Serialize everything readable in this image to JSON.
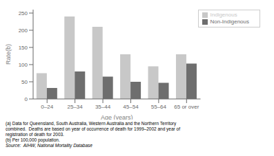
{
  "chart_data": {
    "type": "bar",
    "categories": [
      "0–24",
      "25–34",
      "35–44",
      "45–54",
      "55–64",
      "65 or over"
    ],
    "series": [
      {
        "name": "Indigenous",
        "color": "#c8c8c8",
        "values": [
          75,
          240,
          210,
          130,
          95,
          130
        ]
      },
      {
        "name": "Non-Indigenous",
        "color": "#6e6e6e",
        "values": [
          32,
          80,
          65,
          50,
          47,
          103
        ]
      }
    ],
    "xlabel": "Age (years)",
    "ylabel": "Rate(b)",
    "ylim": [
      0,
      260
    ],
    "yticks": [
      0,
      50,
      100,
      150,
      200,
      250
    ],
    "grid": false,
    "legend": "upper right",
    "annotations": [
      "(a) Data for Queensland, South Australia, Western Australia and the Northern Territory",
      "combined.  Deaths are based on year of occurrence of death for 1999–2002 and year of",
      "registration of death for 2003.",
      "(b) Per 100,000 population.",
      "Source:  AIHW, National Mortality Database"
    ]
  }
}
